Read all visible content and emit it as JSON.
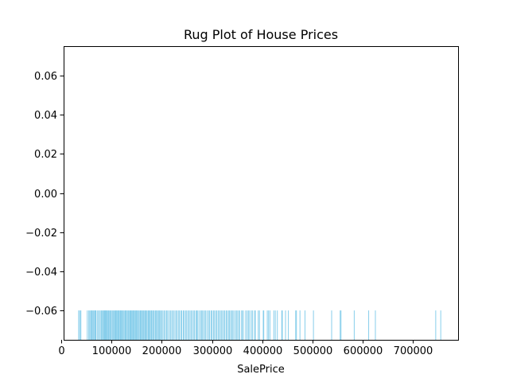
{
  "chart_data": {
    "type": "rug",
    "title": "Rug Plot of House Prices",
    "xlabel": "SalePrice",
    "ylabel": "",
    "xlim": [
      5000,
      789500
    ],
    "ylim": [
      -0.075,
      0.075
    ],
    "xticks": [
      0,
      100000,
      200000,
      300000,
      400000,
      500000,
      600000,
      700000
    ],
    "xtick_labels": [
      "0",
      "100000",
      "200000",
      "300000",
      "400000",
      "500000",
      "600000",
      "700000"
    ],
    "yticks": [
      -0.06,
      -0.04,
      -0.02,
      0.0,
      0.02,
      0.04,
      0.06
    ],
    "ytick_labels": [
      "−0.06",
      "−0.04",
      "−0.02",
      "0.00",
      "0.02",
      "0.04",
      "0.06"
    ],
    "grid": false,
    "rug": {
      "y_bottom": -0.075,
      "y_top": -0.06,
      "color": "#87CEEB"
    },
    "values": [
      34900,
      35311,
      37900,
      39300,
      52000,
      55000,
      55993,
      58500,
      60000,
      61000,
      62383,
      64500,
      66500,
      67000,
      68400,
      68500,
      69500,
      72500,
      75000,
      76000,
      79000,
      80000,
      82000,
      83000,
      85000,
      86000,
      87000,
      88000,
      89500,
      90000,
      91000,
      93000,
      94000,
      95000,
      97000,
      98000,
      99900,
      100000,
      102000,
      104000,
      105000,
      107000,
      108000,
      109500,
      110000,
      112000,
      113000,
      114500,
      115000,
      117000,
      118000,
      119000,
      120000,
      122000,
      123000,
      125000,
      127000,
      128000,
      129500,
      130000,
      132000,
      134000,
      135000,
      137000,
      138500,
      139000,
      140000,
      142000,
      143000,
      144500,
      145000,
      147000,
      148000,
      149500,
      150000,
      152000,
      153000,
      155000,
      157000,
      158000,
      159500,
      160000,
      162000,
      163500,
      165000,
      167000,
      168500,
      170000,
      172500,
      174000,
      175000,
      177000,
      179000,
      180000,
      182000,
      184000,
      185000,
      187500,
      189000,
      190000,
      192500,
      194500,
      196000,
      198000,
      200000,
      202500,
      205000,
      207500,
      210000,
      212000,
      215000,
      217500,
      220000,
      222500,
      225000,
      228000,
      230000,
      233000,
      235000,
      238000,
      240000,
      243000,
      245000,
      248000,
      250000,
      253000,
      255000,
      258000,
      260000,
      263000,
      265000,
      268000,
      270000,
      272000,
      275000,
      278000,
      280000,
      282000,
      285000,
      287000,
      290000,
      293000,
      295000,
      298000,
      300000,
      303000,
      305000,
      308000,
      310000,
      313000,
      315000,
      318000,
      320000,
      323000,
      325000,
      328000,
      330000,
      333000,
      335000,
      337500,
      340000,
      342000,
      345000,
      348000,
      350000,
      353000,
      355000,
      359100,
      360000,
      362500,
      367000,
      369900,
      372500,
      375000,
      378500,
      381000,
      385000,
      386250,
      392000,
      394500,
      402000,
      403000,
      410000,
      412500,
      415298,
      423000,
      426000,
      430000,
      438780,
      440000,
      446261,
      451950,
      466500,
      468000,
      475000,
      485000,
      501837,
      538000,
      555000,
      556581,
      582933,
      611657,
      625000,
      745000,
      755000
    ]
  }
}
